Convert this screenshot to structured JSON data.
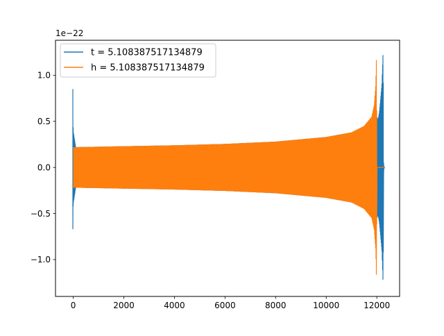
{
  "chart_data": {
    "type": "line",
    "title": "",
    "xlabel": "",
    "ylabel": "",
    "y_offset_label": "1e−22",
    "xlim": [
      -700,
      12900
    ],
    "ylim": [
      -1.4,
      1.38
    ],
    "x_ticks": [
      0,
      2000,
      4000,
      6000,
      8000,
      10000,
      12000
    ],
    "x_tick_labels": [
      "0",
      "2000",
      "4000",
      "6000",
      "8000",
      "10000",
      "12000"
    ],
    "y_ticks": [
      1.0,
      0.5,
      0.0,
      -0.5,
      -1.0
    ],
    "y_tick_labels": [
      "1.0",
      "0.5",
      "0.0",
      "−0.5",
      "−1.0"
    ],
    "legend_position": "top-left",
    "grid": false,
    "series": [
      {
        "name": "t = 5.108387517134879",
        "color": "#1f77b4",
        "envelope": {
          "x": [
            -10,
            0,
            100,
            2000,
            4000,
            6000,
            8000,
            10000,
            11000,
            11500,
            11800,
            12000,
            12050,
            12100,
            12200,
            12250,
            12270,
            12290
          ],
          "upper": [
            0.85,
            0.4,
            0.22,
            0.23,
            0.24,
            0.255,
            0.28,
            0.33,
            0.38,
            0.43,
            0.5,
            0.55,
            0.52,
            0.6,
            0.9,
            1.28,
            0.01,
            0.01
          ],
          "lower": [
            -0.67,
            -0.4,
            -0.22,
            -0.23,
            -0.24,
            -0.255,
            -0.28,
            -0.33,
            -0.38,
            -0.43,
            -0.5,
            -0.55,
            -0.52,
            -0.6,
            -0.9,
            -1.28,
            -0.01,
            -0.01
          ]
        }
      },
      {
        "name": "h = 5.108387517134879",
        "color": "#ff7f0e",
        "envelope": {
          "x": [
            0,
            100,
            2000,
            4000,
            6000,
            8000,
            10000,
            11000,
            11500,
            11800,
            11900,
            11960,
            11990,
            12000,
            12010,
            12300
          ],
          "upper": [
            0.22,
            0.22,
            0.23,
            0.24,
            0.255,
            0.28,
            0.33,
            0.38,
            0.45,
            0.55,
            0.68,
            0.9,
            1.27,
            0.01,
            0.0,
            0.0
          ],
          "lower": [
            -0.22,
            -0.22,
            -0.23,
            -0.24,
            -0.255,
            -0.28,
            -0.33,
            -0.38,
            -0.45,
            -0.55,
            -0.68,
            -0.9,
            -1.27,
            -0.01,
            0.0,
            0.0
          ]
        }
      }
    ]
  }
}
